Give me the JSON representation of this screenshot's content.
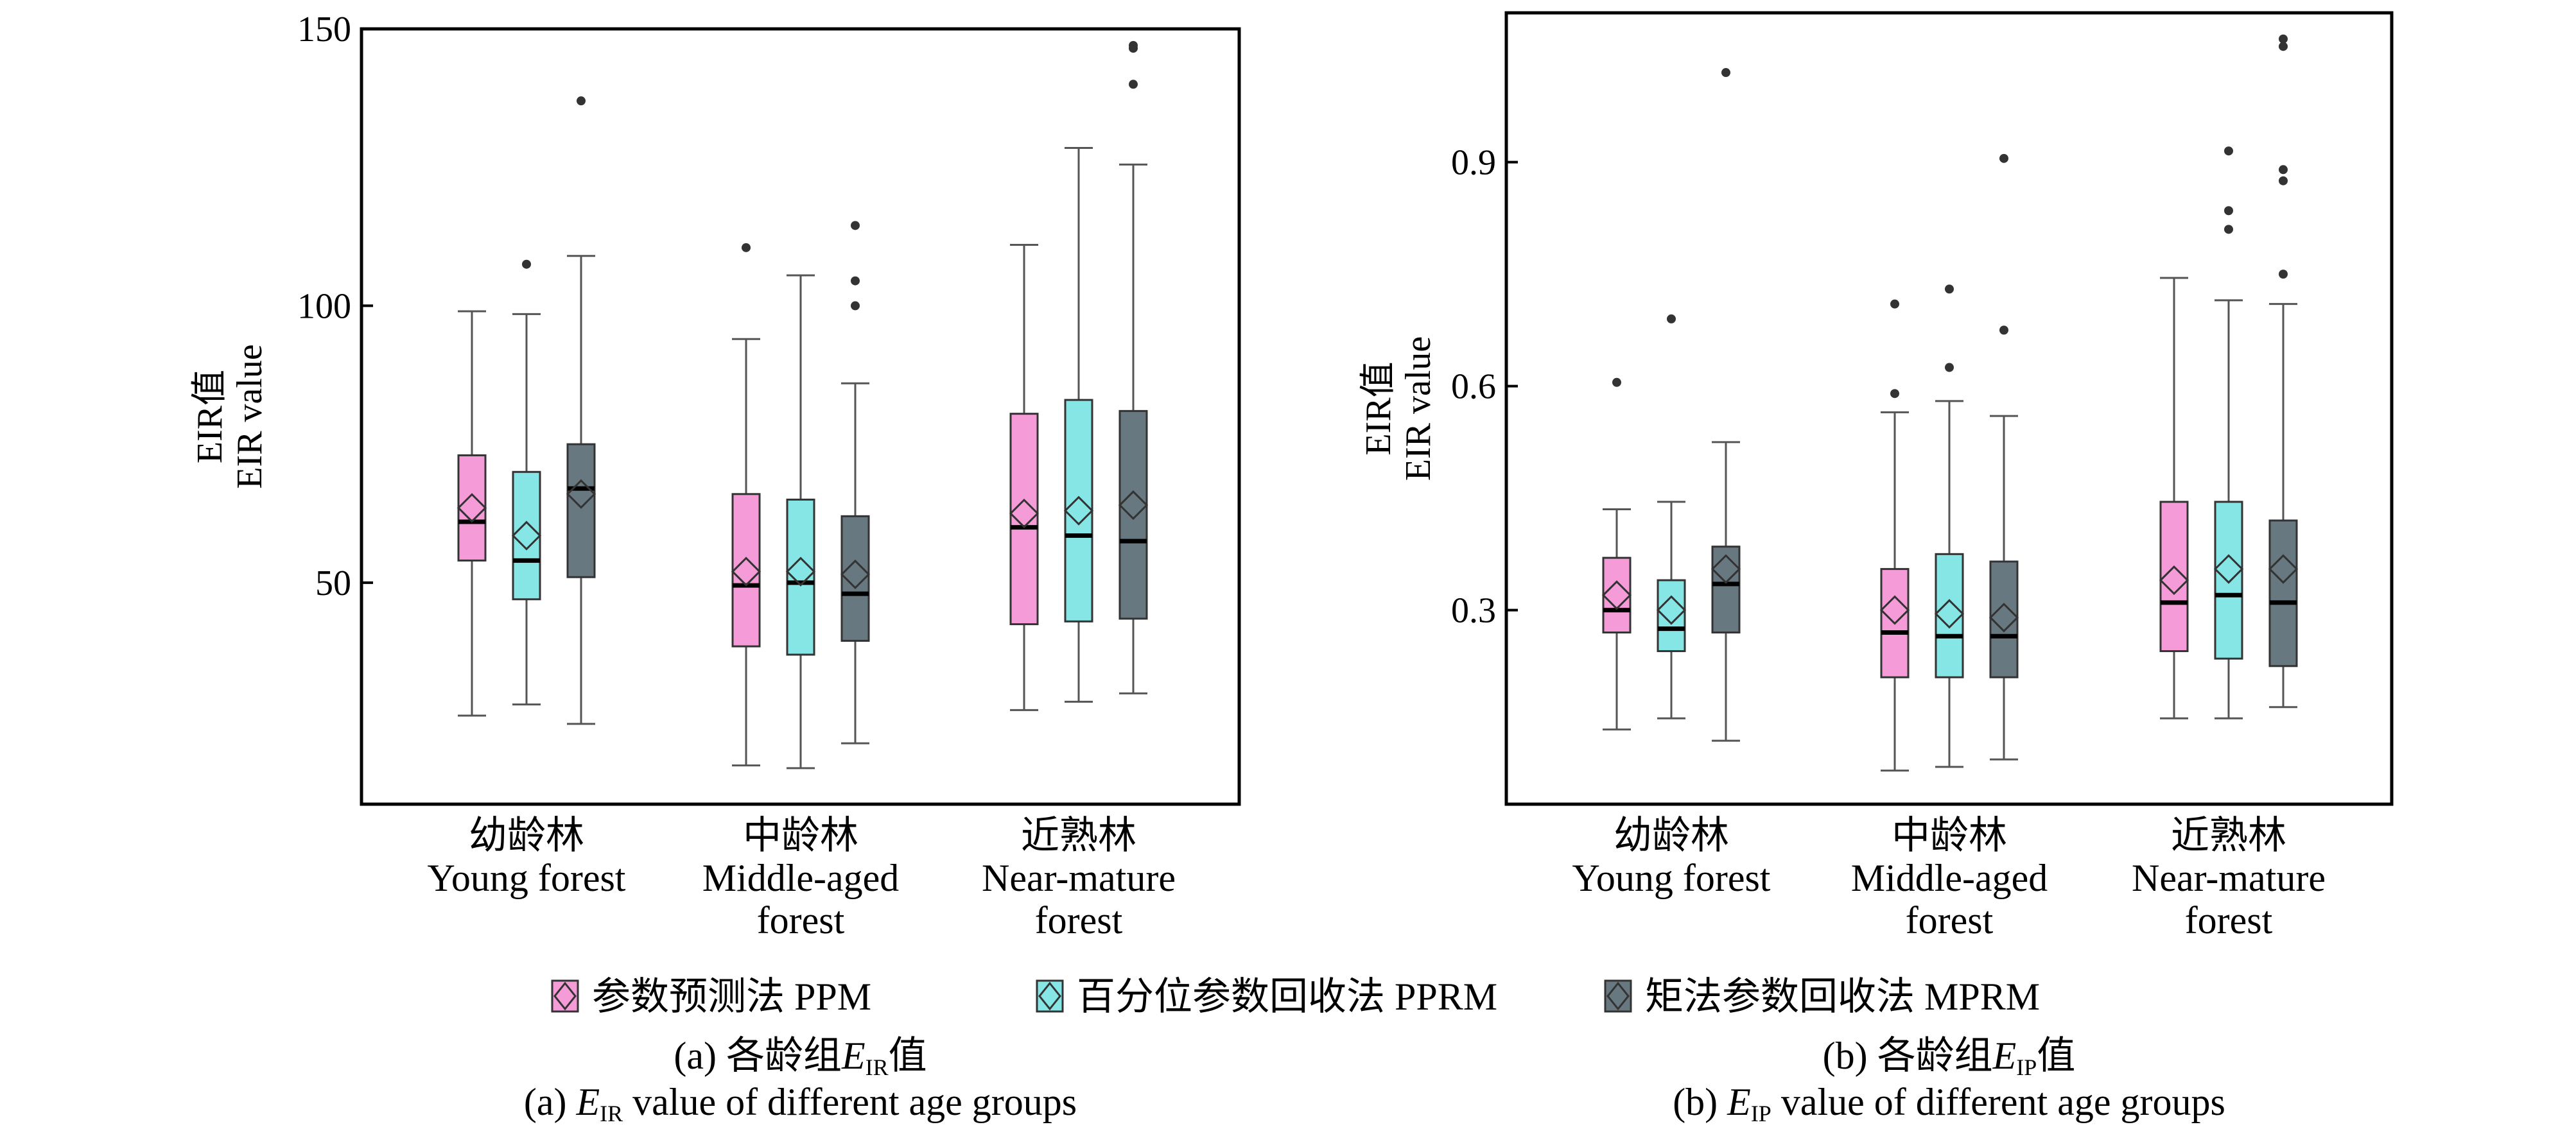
{
  "chart_data": [
    {
      "type": "box",
      "panel": "a",
      "ylabel": [
        "EIR值",
        "EIR value"
      ],
      "ylim": [
        10,
        150
      ],
      "yticks": [
        50,
        100,
        150
      ],
      "categories": [
        [
          "幼龄林",
          "Young forest"
        ],
        [
          "中龄林",
          "Middle-aged",
          "forest"
        ],
        [
          "近熟林",
          "Near-mature",
          "forest"
        ]
      ],
      "caption": {
        "zh": {
          "prefix": "(a) 各龄组",
          "var": "E",
          "sub": "IR",
          "suffix": "值"
        },
        "en": {
          "prefix": "(a) ",
          "var": "E",
          "sub": "IR",
          "suffix": " value of different age groups"
        }
      },
      "series": [
        {
          "name": "参数预测法 PPM",
          "color": "#f59bd8",
          "boxes": [
            {
              "whislo": 26,
              "q1": 54,
              "med": 61,
              "q3": 73,
              "whishi": 99,
              "mean": 63.5,
              "fliers": []
            },
            {
              "whislo": 17,
              "q1": 38.5,
              "med": 49.5,
              "q3": 66,
              "whishi": 94,
              "mean": 52,
              "fliers": [
                110.5
              ]
            },
            {
              "whislo": 27,
              "q1": 42.5,
              "med": 60,
              "q3": 80.5,
              "whishi": 111,
              "mean": 62.5,
              "fliers": []
            }
          ]
        },
        {
          "name": "百分位参数回收法 PPRM",
          "color": "#86e6e6",
          "boxes": [
            {
              "whislo": 28,
              "q1": 47,
              "med": 54,
              "q3": 70,
              "whishi": 98.5,
              "mean": 58.5,
              "fliers": [
                107.5
              ]
            },
            {
              "whislo": 16.5,
              "q1": 37,
              "med": 50,
              "q3": 65,
              "whishi": 105.5,
              "mean": 52,
              "fliers": []
            },
            {
              "whislo": 28.5,
              "q1": 43,
              "med": 58.5,
              "q3": 83,
              "whishi": 128.5,
              "mean": 63,
              "fliers": []
            }
          ]
        },
        {
          "name": "矩法参数回收法 MPRM",
          "color": "#687880",
          "boxes": [
            {
              "whislo": 24.5,
              "q1": 51,
              "med": 67,
              "q3": 75,
              "whishi": 109,
              "mean": 66,
              "fliers": [
                137
              ]
            },
            {
              "whislo": 21,
              "q1": 39.5,
              "med": 48,
              "q3": 62,
              "whishi": 86,
              "mean": 51.5,
              "fliers": [
                100,
                104.5,
                114.5
              ]
            },
            {
              "whislo": 30,
              "q1": 43.5,
              "med": 57.5,
              "q3": 81,
              "whishi": 125.5,
              "mean": 64,
              "fliers": [
                140,
                146.5,
                147
              ]
            }
          ]
        }
      ]
    },
    {
      "type": "box",
      "panel": "b",
      "ylabel": [
        "EIR值",
        "EIR value"
      ],
      "ylim": [
        0.04,
        1.1
      ],
      "yticks": [
        0.3,
        0.6,
        0.9
      ],
      "categories": [
        [
          "幼龄林",
          "Young forest"
        ],
        [
          "中龄林",
          "Middle-aged",
          "forest"
        ],
        [
          "近熟林",
          "Near-mature",
          "forest"
        ]
      ],
      "caption": {
        "zh": {
          "prefix": "(b) 各龄组",
          "var": "E",
          "sub": "IP",
          "suffix": "值"
        },
        "en": {
          "prefix": "(b) ",
          "var": "E",
          "sub": "IP",
          "suffix": " value of different age groups"
        }
      },
      "series": [
        {
          "name": "参数预测法 PPM",
          "color": "#f59bd8",
          "boxes": [
            {
              "whislo": 0.14,
              "q1": 0.27,
              "med": 0.3,
              "q3": 0.37,
              "whishi": 0.435,
              "mean": 0.32,
              "fliers": [
                0.605
              ]
            },
            {
              "whislo": 0.085,
              "q1": 0.21,
              "med": 0.27,
              "q3": 0.355,
              "whishi": 0.565,
              "mean": 0.3,
              "fliers": [
                0.59,
                0.71
              ]
            },
            {
              "whislo": 0.155,
              "q1": 0.245,
              "med": 0.31,
              "q3": 0.445,
              "whishi": 0.745,
              "mean": 0.34,
              "fliers": []
            }
          ]
        },
        {
          "name": "百分位参数回收法 PPRM",
          "color": "#86e6e6",
          "boxes": [
            {
              "whislo": 0.155,
              "q1": 0.245,
              "med": 0.275,
              "q3": 0.34,
              "whishi": 0.445,
              "mean": 0.3,
              "fliers": [
                0.69
              ]
            },
            {
              "whislo": 0.09,
              "q1": 0.21,
              "med": 0.265,
              "q3": 0.375,
              "whishi": 0.58,
              "mean": 0.295,
              "fliers": [
                0.625,
                0.73
              ]
            },
            {
              "whislo": 0.155,
              "q1": 0.235,
              "med": 0.32,
              "q3": 0.445,
              "whishi": 0.715,
              "mean": 0.355,
              "fliers": [
                0.81,
                0.835,
                0.915
              ]
            }
          ]
        },
        {
          "name": "矩法参数回收法 MPRM",
          "color": "#687880",
          "boxes": [
            {
              "whislo": 0.125,
              "q1": 0.27,
              "med": 0.335,
              "q3": 0.385,
              "whishi": 0.525,
              "mean": 0.355,
              "fliers": [
                1.02
              ]
            },
            {
              "whislo": 0.1,
              "q1": 0.21,
              "med": 0.265,
              "q3": 0.365,
              "whishi": 0.56,
              "mean": 0.29,
              "fliers": [
                0.675,
                0.905
              ]
            },
            {
              "whislo": 0.17,
              "q1": 0.225,
              "med": 0.31,
              "q3": 0.42,
              "whishi": 0.71,
              "mean": 0.355,
              "fliers": [
                0.75,
                0.875,
                0.89,
                1.055,
                1.065
              ]
            }
          ]
        }
      ]
    }
  ],
  "legend": {
    "placement": "bottom",
    "items": [
      "参数预测法 PPM",
      "百分位参数回收法 PPRM",
      "矩法参数回收法 MPRM"
    ]
  }
}
